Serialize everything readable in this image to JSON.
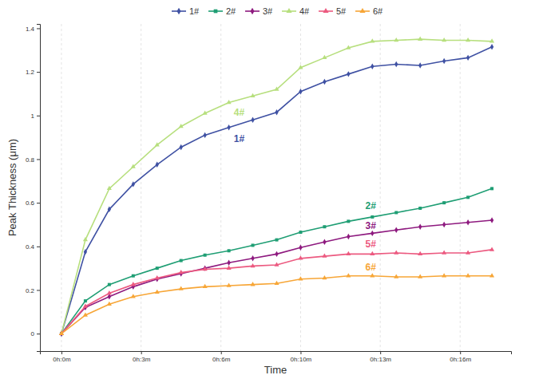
{
  "chart_data": {
    "type": "line",
    "x_label": "Time",
    "y_label": "Peak Thickness (μm)",
    "x": [
      0,
      1,
      2,
      3,
      4,
      5,
      6,
      7,
      8,
      9,
      10,
      11,
      12,
      13,
      14,
      15,
      16,
      17,
      18
    ],
    "xlim": [
      -0.9,
      18.8
    ],
    "xticks": [
      {
        "value": 0,
        "label": "0h:0m"
      },
      {
        "value": 3.33,
        "label": "0h:3m"
      },
      {
        "value": 6.67,
        "label": "0h:6m"
      },
      {
        "value": 10,
        "label": "0h:10m"
      },
      {
        "value": 13.33,
        "label": "0h:13m"
      },
      {
        "value": 16.67,
        "label": "0h:16m"
      }
    ],
    "ylim": [
      -0.08,
      1.42
    ],
    "yticks": [
      0,
      0.2,
      0.4,
      0.6,
      0.8,
      1,
      1.2,
      1.4
    ],
    "grid": "x",
    "legend": "top",
    "series": [
      {
        "name": "1#",
        "color": "#3f51a3",
        "marker": "diamond",
        "values": [
          0,
          0.375,
          0.57,
          0.685,
          0.775,
          0.855,
          0.91,
          0.945,
          0.98,
          1.015,
          1.11,
          1.155,
          1.19,
          1.225,
          1.235,
          1.23,
          1.25,
          1.265,
          1.315
        ]
      },
      {
        "name": "2#",
        "color": "#1f9e74",
        "marker": "square",
        "values": [
          0,
          0.15,
          0.225,
          0.265,
          0.3,
          0.335,
          0.36,
          0.38,
          0.405,
          0.43,
          0.465,
          0.49,
          0.515,
          0.535,
          0.555,
          0.575,
          0.6,
          0.625,
          0.665
        ]
      },
      {
        "name": "3#",
        "color": "#8e1a7f",
        "marker": "diamond",
        "values": [
          0,
          0.12,
          0.17,
          0.215,
          0.25,
          0.275,
          0.3,
          0.325,
          0.345,
          0.365,
          0.395,
          0.42,
          0.445,
          0.46,
          0.475,
          0.49,
          0.5,
          0.51,
          0.52
        ]
      },
      {
        "name": "4#",
        "color": "#b7df7e",
        "marker": "triangle",
        "values": [
          0,
          0.43,
          0.665,
          0.765,
          0.865,
          0.95,
          1.01,
          1.06,
          1.09,
          1.12,
          1.22,
          1.265,
          1.31,
          1.34,
          1.345,
          1.35,
          1.345,
          1.345,
          1.34
        ]
      },
      {
        "name": "5#",
        "color": "#ec5a80",
        "marker": "triangle",
        "values": [
          0,
          0.125,
          0.185,
          0.225,
          0.255,
          0.28,
          0.295,
          0.3,
          0.31,
          0.315,
          0.345,
          0.355,
          0.365,
          0.365,
          0.37,
          0.365,
          0.37,
          0.37,
          0.385
        ]
      },
      {
        "name": "6#",
        "color": "#f7a637",
        "marker": "triangle",
        "values": [
          0,
          0.085,
          0.135,
          0.17,
          0.19,
          0.205,
          0.215,
          0.22,
          0.225,
          0.23,
          0.25,
          0.255,
          0.265,
          0.265,
          0.26,
          0.26,
          0.265,
          0.265,
          0.265
        ]
      }
    ],
    "annotations": [
      {
        "text": "4#",
        "x": 7.43,
        "y": 1.0
      },
      {
        "text": "1#",
        "x": 7.43,
        "y": 0.88
      },
      {
        "text": "2#",
        "x": 12.93,
        "y": 0.57
      },
      {
        "text": "3#",
        "x": 12.93,
        "y": 0.48
      },
      {
        "text": "5#",
        "x": 12.93,
        "y": 0.395
      },
      {
        "text": "6#",
        "x": 12.93,
        "y": 0.29
      }
    ]
  }
}
